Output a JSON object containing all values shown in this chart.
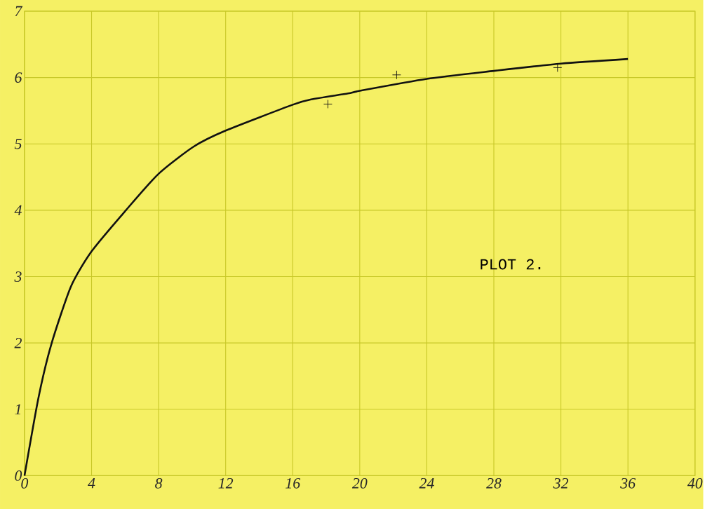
{
  "chart_data": {
    "type": "line",
    "xlim": [
      0,
      40
    ],
    "ylim": [
      0,
      7
    ],
    "xticks": [
      0,
      4,
      8,
      12,
      16,
      20,
      24,
      28,
      32,
      36,
      40
    ],
    "yticks": [
      0,
      1,
      2,
      3,
      4,
      5,
      6,
      7
    ],
    "grid": true,
    "annotations": [
      "PLOT 2."
    ],
    "series": [
      {
        "color": "#111111",
        "marker": "none",
        "x": [
          0,
          0.83,
          1.6,
          2.77,
          4,
          6.05,
          8,
          10.1,
          12,
          16,
          17.1,
          19.3,
          20,
          24,
          28,
          32,
          36
        ],
        "values": [
          0,
          1.17,
          1.98,
          2.85,
          3.38,
          4.0,
          4.55,
          4.96,
          5.2,
          5.59,
          5.67,
          5.76,
          5.8,
          5.98,
          6.1,
          6.21,
          6.28
        ]
      },
      {
        "type": "scatter",
        "color": "#111111",
        "marker": "cross",
        "x": [
          18.1,
          22.2,
          31.8
        ],
        "values": [
          5.6,
          6.04,
          6.15
        ]
      }
    ]
  }
}
